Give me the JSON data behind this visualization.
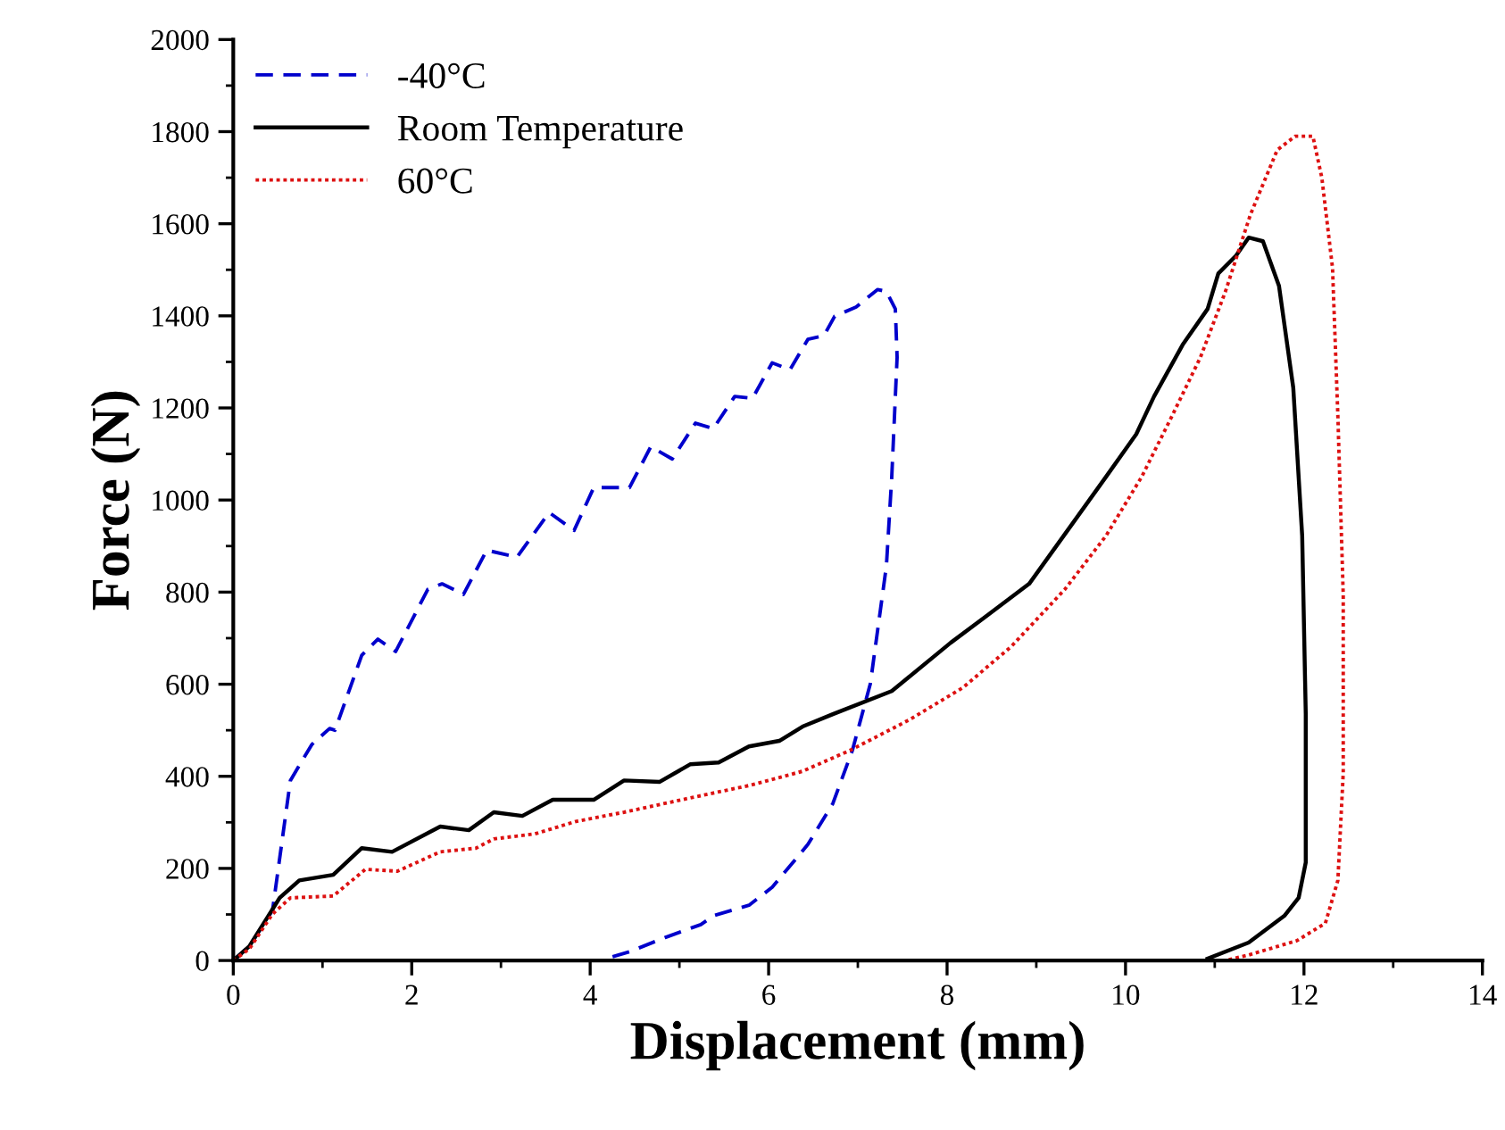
{
  "chart_data": {
    "type": "line",
    "xlabel": "Displacement (mm)",
    "ylabel": "Force (N)",
    "xlim": [
      0,
      14
    ],
    "ylim": [
      0,
      2000
    ],
    "xticks": [
      0,
      2,
      4,
      6,
      8,
      10,
      12,
      14
    ],
    "yticks": [
      0,
      200,
      400,
      600,
      800,
      1000,
      1200,
      1400,
      1600,
      1800,
      2000
    ],
    "grid": false,
    "legend": "top left",
    "marker": "none",
    "series": [
      {
        "name": "-40°C",
        "color": "#0000cc",
        "line_style": "dashed",
        "x": [
          0,
          0.18,
          0.44,
          0.64,
          0.88,
          1.08,
          1.14,
          1.44,
          1.62,
          1.82,
          2.18,
          2.34,
          2.58,
          2.84,
          3.18,
          3.54,
          3.82,
          4.04,
          4.44,
          4.68,
          4.92,
          5.18,
          5.38,
          5.62,
          5.82,
          6.04,
          6.24,
          6.44,
          6.62,
          6.74,
          6.98,
          7.22,
          7.32,
          7.42,
          7.44,
          7.38,
          7.32,
          7.14,
          6.94,
          6.72,
          6.44,
          6.04,
          5.78,
          5.38,
          5.24,
          4.84,
          4.44,
          4.18
        ],
        "values": [
          0,
          31,
          109,
          391,
          469,
          504,
          500,
          663,
          698,
          671,
          806,
          818,
          795,
          891,
          876,
          973,
          934,
          1027,
          1027,
          1116,
          1089,
          1167,
          1155,
          1225,
          1221,
          1298,
          1283,
          1349,
          1357,
          1399,
          1419,
          1457,
          1453,
          1415,
          1310,
          1050,
          857,
          601,
          457,
          341,
          252,
          159,
          120,
          97,
          78,
          50,
          19,
          4
        ]
      },
      {
        "name": "Room Temperature",
        "color": "#000000",
        "line_style": "solid",
        "x": [
          0,
          0.18,
          0.52,
          0.74,
          1.12,
          1.44,
          1.78,
          2.32,
          2.64,
          2.92,
          3.24,
          3.58,
          4.04,
          4.38,
          4.78,
          5.12,
          5.44,
          5.78,
          6.12,
          6.38,
          6.72,
          7.38,
          8.04,
          8.44,
          8.92,
          9.38,
          9.78,
          10.12,
          10.32,
          10.64,
          10.92,
          11.04,
          11.24,
          11.38,
          11.54,
          11.72,
          11.88,
          11.98,
          12.02,
          12.02,
          11.94,
          11.78,
          11.38,
          10.92
        ],
        "values": [
          0,
          31,
          136,
          174,
          186,
          244,
          236,
          291,
          283,
          322,
          314,
          349,
          349,
          391,
          388,
          426,
          430,
          465,
          477,
          508,
          535,
          585,
          690,
          748,
          818,
          942,
          1050,
          1143,
          1225,
          1337,
          1415,
          1492,
          1531,
          1570,
          1562,
          1465,
          1244,
          922,
          535,
          213,
          136,
          97,
          39,
          4
        ]
      },
      {
        "name": "60°C",
        "color": "#dd1111",
        "line_style": "dotted",
        "x": [
          0,
          0.18,
          0.44,
          0.64,
          1.12,
          1.48,
          1.84,
          2.32,
          2.72,
          2.92,
          3.38,
          3.84,
          4.38,
          5.12,
          5.78,
          6.38,
          6.92,
          7.58,
          8.18,
          8.72,
          9.32,
          9.78,
          10.18,
          10.52,
          10.84,
          11.12,
          11.4,
          11.7,
          11.9,
          12.1,
          12.2,
          12.32,
          12.38,
          12.44,
          12.44,
          12.38,
          12.24,
          11.92,
          11.38,
          11.12
        ],
        "values": [
          0,
          25,
          101,
          136,
          140,
          198,
          194,
          236,
          244,
          264,
          275,
          302,
          322,
          353,
          380,
          411,
          457,
          523,
          593,
          682,
          806,
          922,
          1050,
          1182,
          1310,
          1453,
          1620,
          1760,
          1790,
          1790,
          1700,
          1504,
          1182,
          794,
          407,
          174,
          81,
          43,
          12,
          0
        ]
      }
    ]
  }
}
